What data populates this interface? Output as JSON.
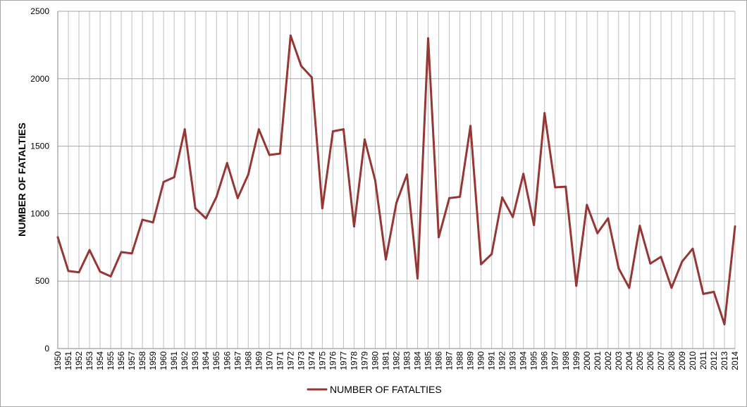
{
  "chart_data": {
    "type": "line",
    "title": "",
    "xlabel": "",
    "ylabel": "NUMBER OF FATALTIES",
    "ylim": [
      0,
      2500
    ],
    "yticks": [
      0,
      500,
      1000,
      1500,
      2000,
      2500
    ],
    "grid": true,
    "legend_position": "bottom",
    "x": [
      1950,
      1951,
      1952,
      1953,
      1954,
      1955,
      1956,
      1957,
      1958,
      1959,
      1960,
      1961,
      1962,
      1963,
      1964,
      1965,
      1966,
      1967,
      1968,
      1969,
      1970,
      1971,
      1972,
      1973,
      1974,
      1975,
      1976,
      1977,
      1978,
      1979,
      1980,
      1981,
      1982,
      1983,
      1984,
      1985,
      1986,
      1987,
      1988,
      1989,
      1990,
      1991,
      1992,
      1993,
      1994,
      1995,
      1996,
      1997,
      1998,
      1999,
      2000,
      2001,
      2002,
      2003,
      2004,
      2005,
      2006,
      2007,
      2008,
      2009,
      2010,
      2011,
      2012,
      2013,
      2014
    ],
    "series": [
      {
        "name": "NUMBER OF FATALTIES",
        "color": "#953735",
        "values": [
          825,
          575,
          565,
          730,
          570,
          535,
          715,
          705,
          955,
          935,
          1235,
          1270,
          1625,
          1040,
          965,
          1125,
          1375,
          1115,
          1290,
          1625,
          1435,
          1445,
          2320,
          2095,
          2010,
          1040,
          1610,
          1625,
          905,
          1550,
          1245,
          660,
          1080,
          1290,
          520,
          2300,
          825,
          1115,
          1125,
          1650,
          625,
          700,
          1120,
          975,
          1295,
          915,
          1745,
          1195,
          1200,
          465,
          1065,
          855,
          965,
          595,
          450,
          910,
          630,
          680,
          450,
          645,
          740,
          405,
          420,
          180,
          905
        ]
      }
    ]
  }
}
